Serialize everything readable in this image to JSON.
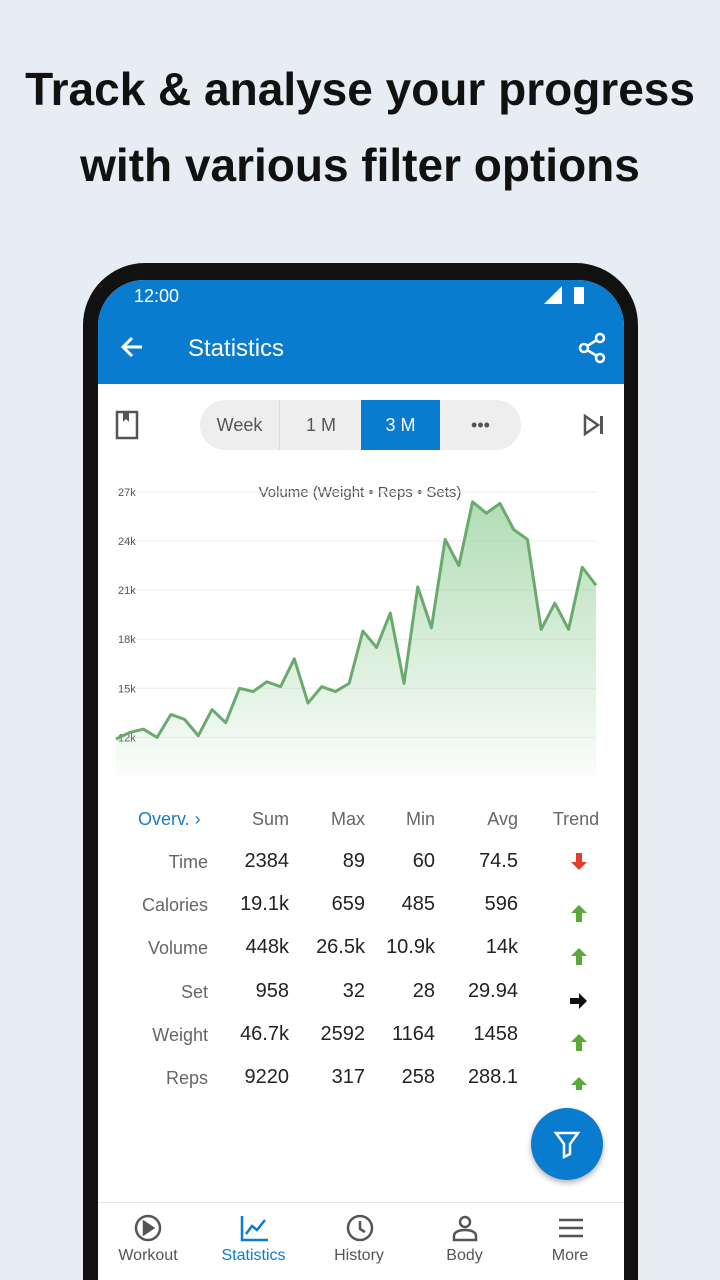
{
  "headline": [
    "Track & analyse your progress",
    "with various filter options"
  ],
  "status": {
    "time": "12:00"
  },
  "appbar": {
    "title": "Statistics"
  },
  "tabs": {
    "items": [
      "Week",
      "1 M",
      "3 M",
      "•••"
    ],
    "selected": 2
  },
  "chart_data": {
    "type": "line",
    "title": "Volume (Weight • Reps • Sets)",
    "color": "#6aaa6e",
    "grid": true,
    "ylim": [
      9700,
      27000
    ],
    "yticks": [
      {
        "value": 12000,
        "label": "12k"
      },
      {
        "value": 15000,
        "label": "15k"
      },
      {
        "value": 18000,
        "label": "18k"
      },
      {
        "value": 21000,
        "label": "21k"
      },
      {
        "value": 24000,
        "label": "24k"
      },
      {
        "value": 27000,
        "label": "27k"
      }
    ],
    "values": [
      11900,
      12300,
      12500,
      12000,
      13400,
      13100,
      12100,
      13700,
      12900,
      15000,
      14800,
      15400,
      15100,
      16800,
      14100,
      15100,
      14800,
      15300,
      18500,
      17500,
      19600,
      15300,
      21200,
      18700,
      24100,
      22500,
      26400,
      25700,
      26300,
      24700,
      24100,
      18600,
      20200,
      18600,
      22400,
      21300
    ]
  },
  "table": {
    "header": [
      "Overv.",
      "Sum",
      "Max",
      "Min",
      "Avg",
      "Trend"
    ],
    "rows": [
      {
        "label": "Time",
        "cells": [
          "2384",
          "89",
          "60",
          "74.5"
        ]
      },
      {
        "label": "Calories",
        "cells": [
          "19.1k",
          "659",
          "485",
          "596"
        ]
      },
      {
        "label": "Volume",
        "cells": [
          "448k",
          "26.5k",
          "10.9k",
          "14k"
        ]
      },
      {
        "label": "Set",
        "cells": [
          "958",
          "32",
          "28",
          "29.94"
        ]
      },
      {
        "label": "Weight",
        "cells": [
          "46.7k",
          "2592",
          "1164",
          "1458"
        ]
      },
      {
        "label": "Reps",
        "cells": [
          "9220",
          "317",
          "258",
          "288.1"
        ]
      }
    ]
  },
  "nav": {
    "items": [
      "Workout",
      "Statistics",
      "History",
      "Body",
      "More"
    ],
    "selected": 1
  }
}
